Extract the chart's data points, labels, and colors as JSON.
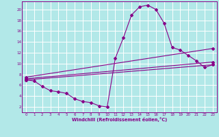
{
  "xlabel": "Windchill (Refroidissement éolien,°C)",
  "xlim": [
    -0.5,
    23.5
  ],
  "ylim": [
    1.0,
    21.5
  ],
  "yticks": [
    2,
    4,
    6,
    8,
    10,
    12,
    14,
    16,
    18,
    20
  ],
  "xticks": [
    0,
    1,
    2,
    3,
    4,
    5,
    6,
    7,
    8,
    9,
    10,
    11,
    12,
    13,
    14,
    15,
    16,
    17,
    18,
    19,
    20,
    21,
    22,
    23
  ],
  "bg_color": "#b2e8e8",
  "line_color": "#880088",
  "grid_color": "#ffffff",
  "line1_x": [
    0,
    1,
    2,
    3,
    4,
    5,
    6,
    7,
    8,
    9,
    10,
    11,
    12,
    13,
    14,
    15,
    16,
    17,
    18,
    19,
    20,
    21,
    22,
    23
  ],
  "line1_y": [
    7.0,
    6.8,
    5.8,
    5.0,
    4.8,
    4.5,
    3.5,
    3.0,
    2.8,
    2.2,
    2.0,
    11.0,
    14.8,
    19.0,
    20.5,
    20.8,
    20.0,
    17.5,
    13.0,
    12.5,
    11.5,
    10.5,
    9.3,
    9.8
  ],
  "line2_x": [
    0,
    23
  ],
  "line2_y": [
    7.0,
    9.8
  ],
  "line3_x": [
    0,
    23
  ],
  "line3_y": [
    7.2,
    10.3
  ],
  "line4_x": [
    0,
    23
  ],
  "line4_y": [
    7.5,
    12.8
  ]
}
